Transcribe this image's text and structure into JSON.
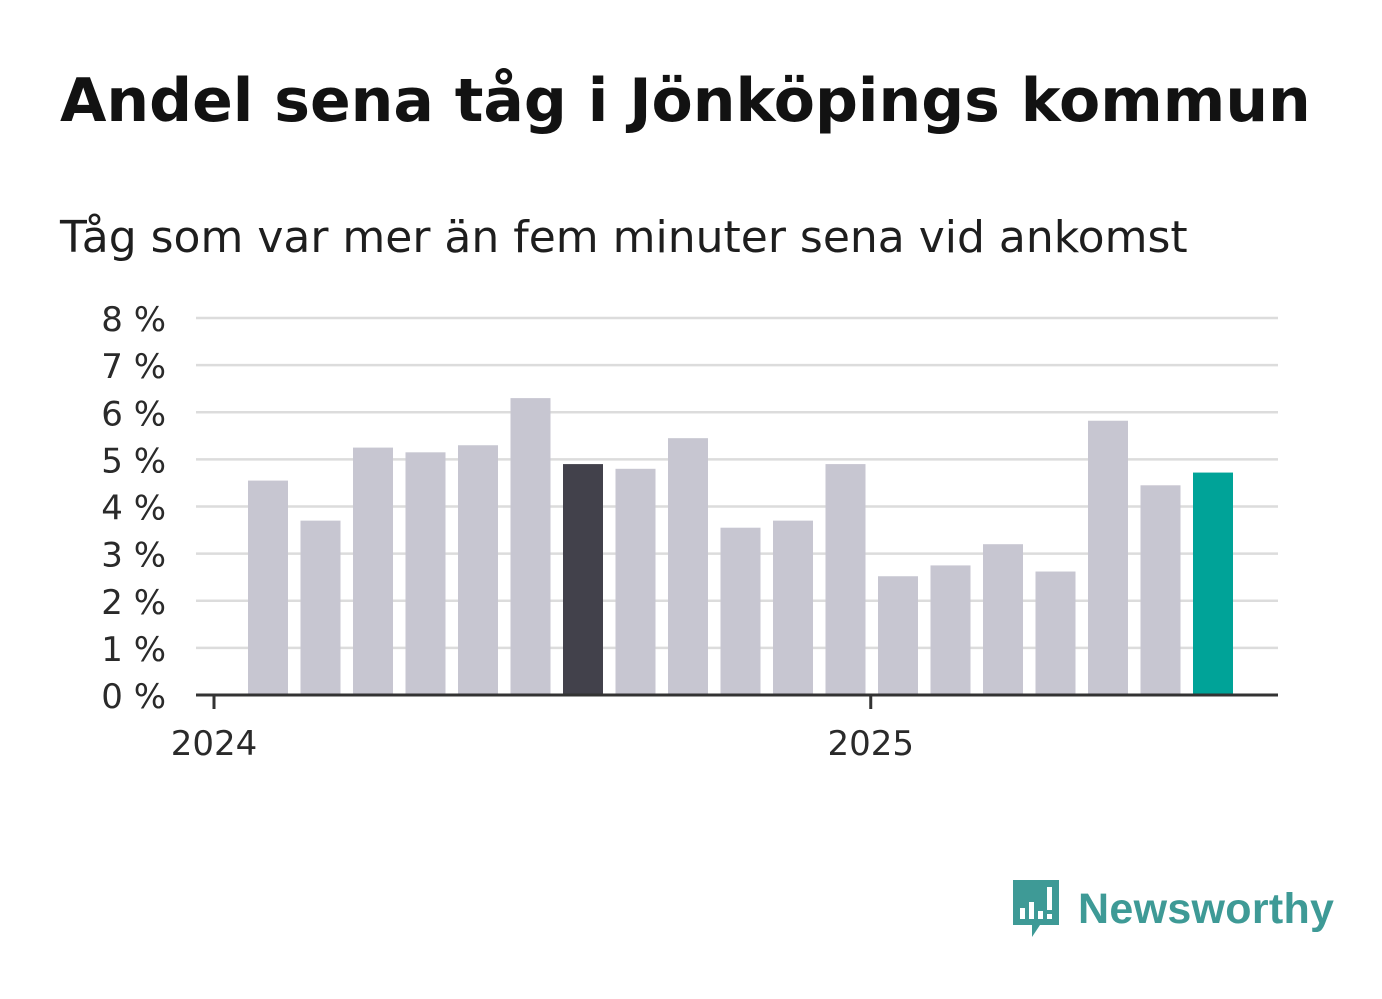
{
  "header": {
    "title": "Andel sena tåg i Jönköpings kommun",
    "subtitle": "Tåg som var mer än fem minuter sena vid ankomst"
  },
  "chart_data": {
    "type": "bar",
    "title": "Andel sena tåg i Jönköpings kommun",
    "subtitle": "Tåg som var mer än fem minuter sena vid ankomst",
    "categories": [
      "2024-01",
      "2024-02",
      "2024-03",
      "2024-04",
      "2024-05",
      "2024-06",
      "2024-07",
      "2024-08",
      "2024-09",
      "2024-10",
      "2024-11",
      "2024-12",
      "2025-01",
      "2025-02",
      "2025-03",
      "2025-04",
      "2025-05",
      "2025-06",
      "2025-07"
    ],
    "values": [
      4.55,
      3.7,
      5.25,
      5.15,
      5.3,
      6.3,
      4.9,
      4.8,
      5.45,
      3.55,
      3.7,
      4.9,
      2.52,
      2.75,
      3.2,
      2.62,
      5.82,
      4.45,
      4.72
    ],
    "ylim": [
      0,
      8
    ],
    "yticks": [
      0,
      1,
      2,
      3,
      4,
      5,
      6,
      7,
      8
    ],
    "ytick_suffix": " %",
    "xtick_labels": [
      {
        "label": "2024",
        "at_index": 0
      },
      {
        "label": "2025",
        "at_index": 12
      }
    ],
    "highlights": [
      {
        "index": 6,
        "color": "#42414b"
      },
      {
        "index": 18,
        "color": "#00a398"
      }
    ],
    "bar_color": "#c7c6d1",
    "grid": true,
    "xlabel": "",
    "ylabel": ""
  },
  "branding": {
    "logo_text": "Newsworthy",
    "logo_icon": "newsworthy-logo-icon",
    "color": "#3e9a96"
  }
}
